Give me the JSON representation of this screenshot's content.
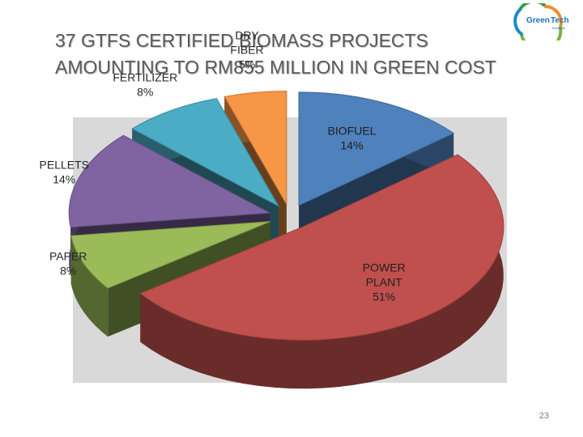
{
  "slide": {
    "title_line1": "37 GTFS CERTIFIED BIOMASS PROJECTS",
    "title_line2": "AMOUNTING TO RM855 MILLION IN GREEN COST",
    "page_number": "23"
  },
  "logo": {
    "word1": "Green",
    "word2": "Tech",
    "subtitle": "Malaysia"
  },
  "chart_data": {
    "type": "pie",
    "exploded": true,
    "three_d": true,
    "start_at": "top, clockwise",
    "categories": [
      "BIOFUEL",
      "POWER PLANT",
      "PAPER",
      "PELLETS",
      "FERTILIZER",
      "DRY FIBER"
    ],
    "values": [
      14,
      51,
      8,
      14,
      8,
      5
    ],
    "labels": [
      "14%",
      "51%",
      "8%",
      "14%",
      "8%",
      "5%"
    ],
    "colors": [
      "#4f81bd",
      "#c0504d",
      "#9bbb59",
      "#8064a2",
      "#4bacc6",
      "#f79646"
    ]
  }
}
